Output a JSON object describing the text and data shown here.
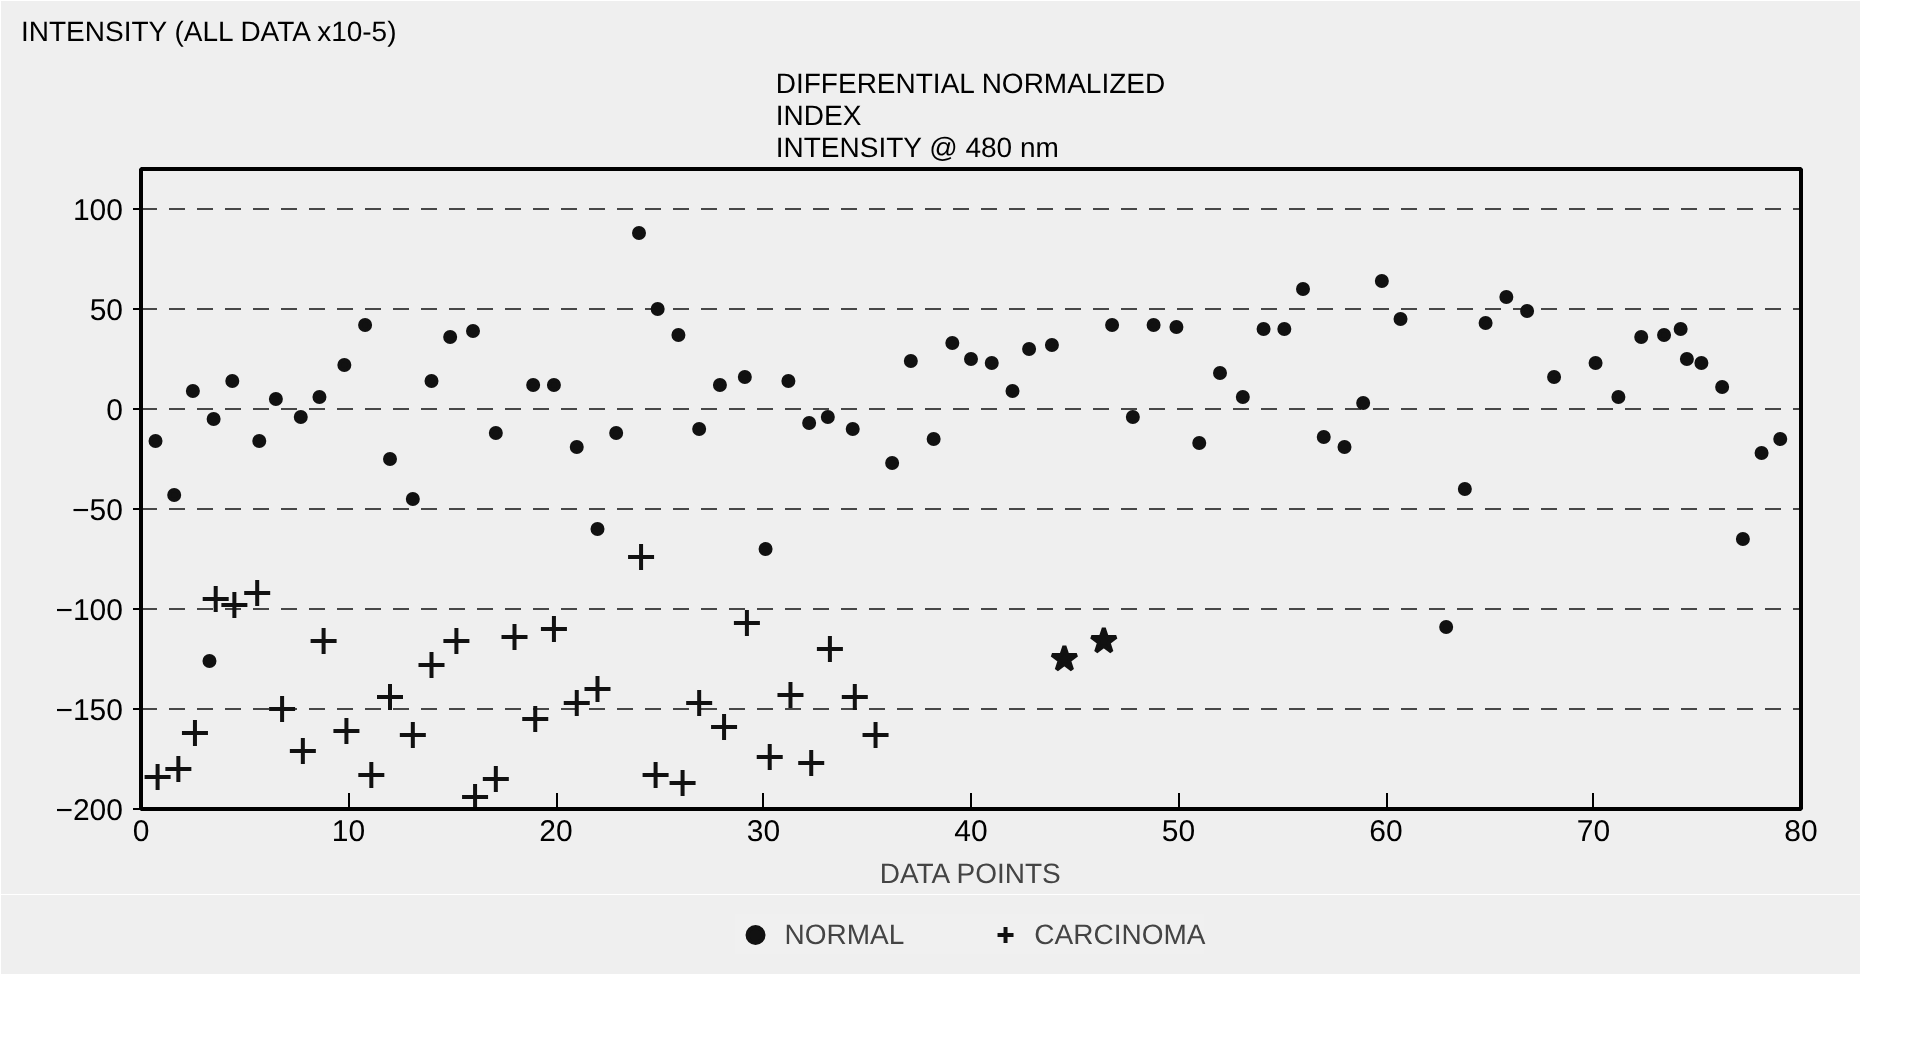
{
  "chart_data": {
    "type": "scatter",
    "title": "DIFFERENTIAL NORMALIZED\nINDEX\nINTENSITY @ 480 nm",
    "ylabel": "INTENSITY (ALL DATA x10-5)",
    "xlabel": "DATA POINTS",
    "xlim": [
      0,
      80
    ],
    "ylim": [
      -200,
      120
    ],
    "xticks": [
      0,
      10,
      20,
      30,
      40,
      50,
      60,
      70,
      80
    ],
    "yticks": [
      -200,
      -150,
      -100,
      -50,
      0,
      50,
      100
    ],
    "grid": "y",
    "legend": "bottom",
    "series": [
      {
        "name": "NORMAL",
        "color": "#111111",
        "marker": "circle",
        "x": [
          0.7,
          1.6,
          2.5,
          3.5,
          3.3,
          4.4,
          5.7,
          6.5,
          7.7,
          8.6,
          9.8,
          10.8,
          12.0,
          13.1,
          14.0,
          14.9,
          16.0,
          17.1,
          18.9,
          19.9,
          21.0,
          22.0,
          22.9,
          24.0,
          24.9,
          25.9,
          26.9,
          27.9,
          29.1,
          30.1,
          31.2,
          32.2,
          33.1,
          34.3,
          36.2,
          37.1,
          38.2,
          39.1,
          40.0,
          41.0,
          42.0,
          42.8,
          43.9,
          46.8,
          47.8,
          48.8,
          49.9,
          51.0,
          52.0,
          53.1,
          54.1,
          55.1,
          56.0,
          57.0,
          58.0,
          58.9,
          59.8,
          60.7,
          62.9,
          63.8,
          64.8,
          65.8,
          66.8,
          68.1,
          70.1,
          71.2,
          72.3,
          73.4,
          74.2,
          74.5,
          75.2,
          76.2,
          77.2,
          78.1,
          79.0
        ],
        "values": [
          -16,
          -43,
          9,
          -5,
          -126,
          14,
          -16,
          5,
          -4,
          6,
          22,
          42,
          -25,
          -45,
          14,
          36,
          39,
          -12,
          12,
          12,
          -19,
          -60,
          -12,
          88,
          50,
          37,
          -10,
          12,
          16,
          -70,
          14,
          -7,
          -4,
          -10,
          -27,
          24,
          -15,
          33,
          25,
          23,
          9,
          30,
          32,
          42,
          -4,
          42,
          41,
          -17,
          18,
          6,
          40,
          40,
          60,
          -14,
          -19,
          3,
          64,
          45,
          -109,
          -40,
          43,
          56,
          49,
          16,
          23,
          6,
          36,
          37,
          40,
          25,
          23,
          11,
          -65,
          -22,
          -15
        ]
      },
      {
        "name": "CARCINOMA",
        "color": "#111111",
        "marker": "cross",
        "x": [
          0.8,
          1.8,
          2.6,
          3.6,
          4.5,
          5.6,
          6.8,
          7.8,
          8.8,
          9.9,
          11.1,
          12.0,
          13.1,
          14.0,
          15.2,
          16.1,
          17.1,
          18.0,
          19.0,
          19.9,
          21.0,
          22.0,
          24.1,
          24.8,
          26.1,
          26.9,
          28.1,
          29.2,
          30.3,
          31.3,
          32.3,
          33.2,
          34.4,
          35.4
        ],
        "values": [
          -184,
          -180,
          -162,
          -95,
          -98,
          -92,
          -150,
          -171,
          -116,
          -161,
          -183,
          -144,
          -163,
          -128,
          -116,
          -194,
          -185,
          -114,
          -155,
          -110,
          -147,
          -140,
          -74,
          -183,
          -187,
          -147,
          -159,
          -107,
          -174,
          -143,
          -177,
          -120,
          -144,
          -163
        ]
      },
      {
        "color": "#111111",
        "marker": "star",
        "x": [
          44.5,
          46.4
        ],
        "values": [
          -125,
          -116
        ]
      }
    ]
  }
}
